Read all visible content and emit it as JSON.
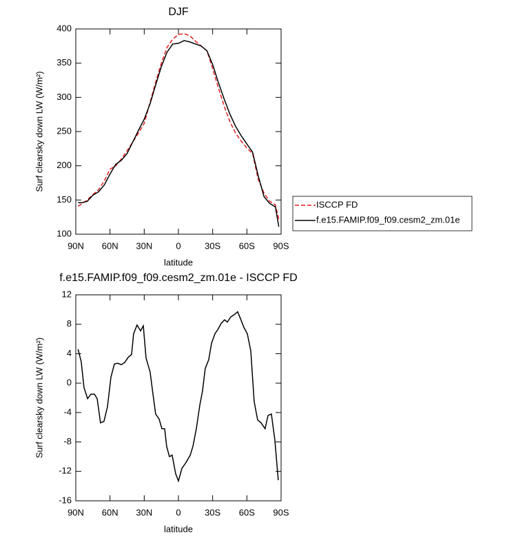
{
  "chart_data": [
    {
      "type": "line",
      "title": "DJF",
      "xlabel": "latitude",
      "ylabel": "Surf clearsky down LW (W/m²)",
      "x": [
        88,
        85,
        80,
        75,
        70,
        65,
        60,
        55,
        50,
        45,
        40,
        35,
        30,
        25,
        20,
        15,
        10,
        5,
        0,
        -5,
        -10,
        -15,
        -20,
        -25,
        -30,
        -35,
        -40,
        -45,
        -50,
        -55,
        -60,
        -65,
        -70,
        -75,
        -80,
        -85,
        -88
      ],
      "series": [
        {
          "name": "ISCCP FD",
          "color": "#e41a1c",
          "dash": true,
          "values": [
            141,
            144,
            150,
            158,
            165,
            178,
            195,
            200,
            210,
            222,
            235,
            248,
            262,
            292,
            322,
            350,
            373,
            385,
            392,
            393,
            390,
            382,
            375,
            368,
            342,
            314,
            288,
            265,
            248,
            236,
            226,
            218,
            180,
            160,
            148,
            143,
            122
          ]
        },
        {
          "name": "f.e15.FAMIP.f09_f09.cesm2_zm.01e",
          "color": "#000000",
          "dash": false,
          "values": [
            146,
            146,
            148,
            157,
            162,
            172,
            188,
            202,
            208,
            218,
            235,
            252,
            268,
            290,
            318,
            345,
            366,
            378,
            379,
            383,
            381,
            378,
            375,
            368,
            348,
            322,
            298,
            276,
            258,
            244,
            232,
            220,
            185,
            155,
            145,
            140,
            111
          ]
        }
      ],
      "xlim": [
        90,
        -90
      ],
      "xticks": [
        {
          "value": 90,
          "label": "90N"
        },
        {
          "value": 60,
          "label": "60N"
        },
        {
          "value": 30,
          "label": "30N"
        },
        0,
        {
          "value": -30,
          "label": "30S"
        },
        {
          "value": -60,
          "label": "60S"
        },
        {
          "value": -90,
          "label": "90S"
        }
      ],
      "ylim": [
        100,
        400
      ],
      "yticks": [
        100,
        150,
        200,
        250,
        300,
        350,
        400
      ],
      "legend": "right"
    },
    {
      "type": "line",
      "title": "f.e15.FAMIP.f09_f09.cesm2_zm.01e - ISCCP FD",
      "xlabel": "latitude",
      "ylabel": "Surf clearsky down LW (W/m²)",
      "x": [
        88,
        85.2,
        82.8,
        79.7,
        76.7,
        73.7,
        71.3,
        68.3,
        65.3,
        62.2,
        59.2,
        56.2,
        53.2,
        50.1,
        47.1,
        44.1,
        41.1,
        39.3,
        36.3,
        33.2,
        30.8,
        28.4,
        24.8,
        22.4,
        20,
        16.9,
        14.5,
        12.1,
        10.3,
        7.9,
        5.5,
        2.5,
        0,
        -3,
        -6.6,
        -10.3,
        -12.7,
        -15.7,
        -18.7,
        -21.1,
        -23.5,
        -26.6,
        -29,
        -32,
        -35,
        -37.4,
        -40.4,
        -42.9,
        -45.9,
        -48.9,
        -51.9,
        -54.3,
        -57.3,
        -60.4,
        -63.4,
        -66.4,
        -69.4,
        -72.4,
        -76,
        -78.5,
        -81.5,
        -84.5,
        -87.5
      ],
      "series": [
        {
          "color": "#000000",
          "dash": false,
          "values": [
            4.6,
            2.9,
            -0.6,
            -2.1,
            -1.5,
            -1.5,
            -2.1,
            -5.4,
            -5.2,
            -3.2,
            0.8,
            2.6,
            2.7,
            2.5,
            2.8,
            3.5,
            3.9,
            6.7,
            7.9,
            7.1,
            7.8,
            3.4,
            1.5,
            -1.4,
            -4.2,
            -4.9,
            -6.2,
            -6.2,
            -8.6,
            -10,
            -9.8,
            -12.3,
            -13.3,
            -11.6,
            -10.8,
            -9.8,
            -8.6,
            -6.2,
            -3,
            -1.1,
            2,
            3.2,
            5.4,
            6.7,
            7.4,
            8.1,
            8.6,
            8.3,
            9,
            9.3,
            9.7,
            8.8,
            7.6,
            6.7,
            4.4,
            -2.5,
            -5,
            -5.4,
            -6.2,
            -4.4,
            -4.2,
            -7.7,
            -13.2
          ]
        }
      ],
      "xlim": [
        90,
        -90
      ],
      "xticks": [
        {
          "value": 90,
          "label": "90N"
        },
        {
          "value": 60,
          "label": "60N"
        },
        {
          "value": 30,
          "label": "30N"
        },
        0,
        {
          "value": -30,
          "label": "30S"
        },
        {
          "value": -60,
          "label": "60S"
        },
        {
          "value": -90,
          "label": "90S"
        }
      ],
      "ylim": [
        -16,
        12
      ],
      "yticks": [
        -16,
        -12,
        -8,
        -4,
        0,
        4,
        8,
        12
      ]
    }
  ]
}
